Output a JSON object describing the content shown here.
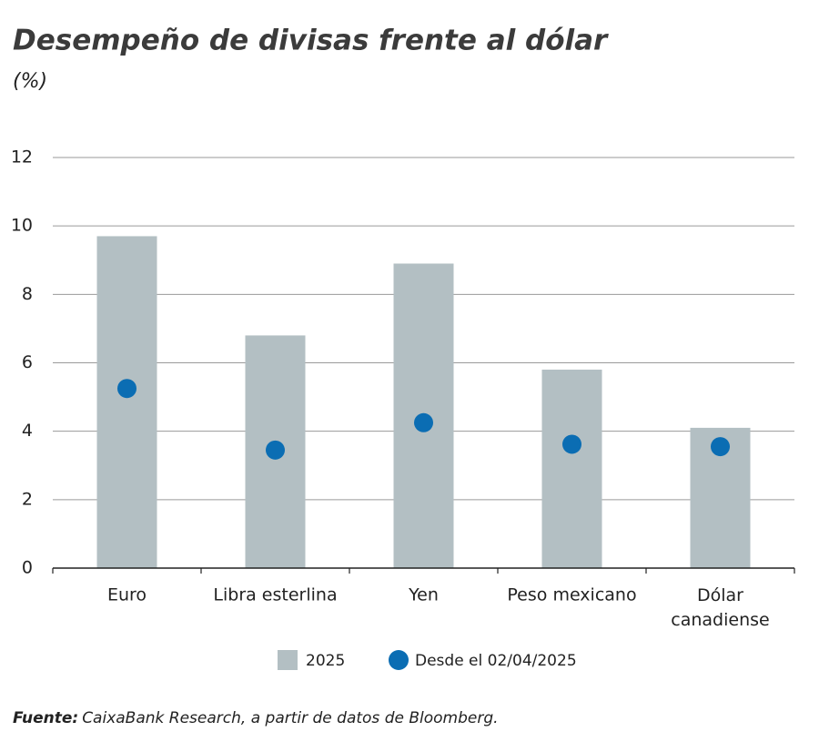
{
  "chart_data": {
    "type": "bar_dot",
    "title": "Desempeño de divisas frente al dólar",
    "subtitle": "(%)",
    "categories": [
      "Euro",
      "Libra esterlina",
      "Yen",
      "Peso mexicano",
      "Dólar\ncanadiense"
    ],
    "series": [
      {
        "name": "2025",
        "color": "#b3bfc3",
        "values": [
          9.7,
          6.8,
          8.9,
          5.8,
          4.1
        ]
      },
      {
        "name": "Desde el 02/04/2025",
        "color": "#0b6db3",
        "values": [
          5.25,
          3.45,
          4.25,
          3.62,
          3.55
        ]
      }
    ],
    "ylim": [
      0,
      12
    ],
    "yticks": [
      0,
      2,
      4,
      6,
      8,
      10,
      12
    ],
    "grid": true,
    "source_label": "Fuente:",
    "source": "CaixaBank Research, a partir de datos de Bloomberg."
  }
}
